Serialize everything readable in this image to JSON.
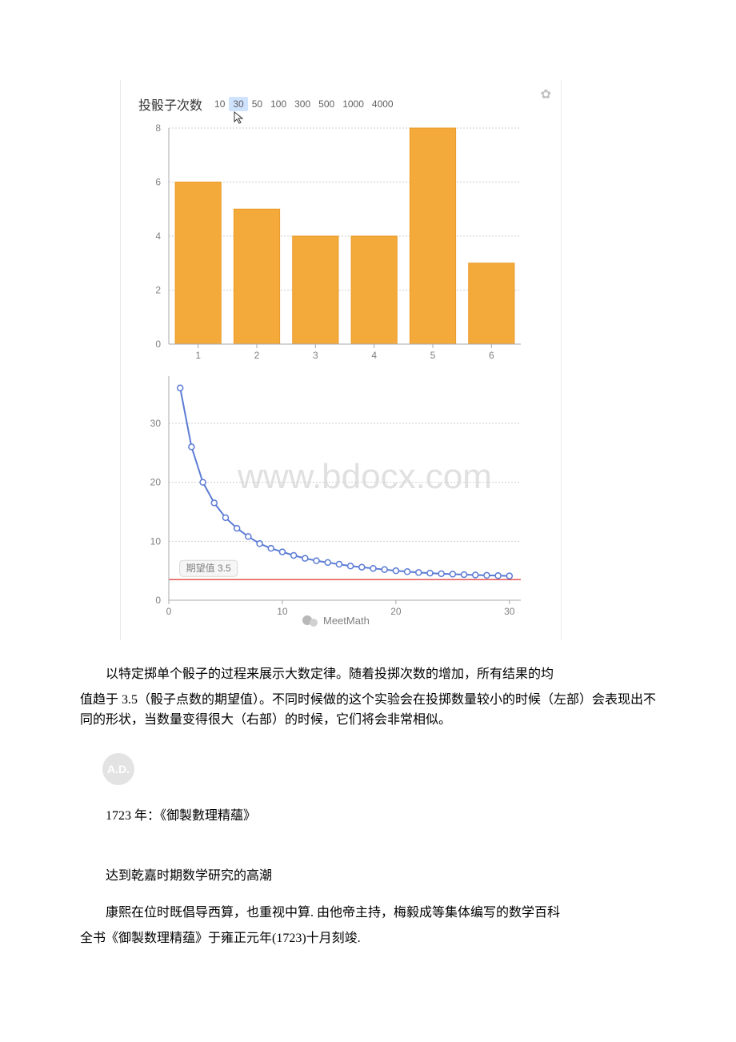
{
  "chart": {
    "header_title": "投骰子次数",
    "trial_options": [
      "10",
      "30",
      "50",
      "100",
      "300",
      "500",
      "1000",
      "4000"
    ],
    "selected_index": 1,
    "gear_glyph": "✿",
    "bar": {
      "type": "bar",
      "categories": [
        "1",
        "2",
        "3",
        "4",
        "5",
        "6"
      ],
      "values": [
        6,
        5,
        4,
        4,
        8,
        3
      ],
      "bar_color": "#f4aa3b",
      "bar_stroke": "#e6952a",
      "grid_color": "#cfcfcf",
      "axis_color": "#a8a8a8",
      "yticks": [
        "0",
        "2",
        "4",
        "6",
        "8"
      ],
      "ylim": [
        0,
        8
      ],
      "xlim": [
        0.5,
        6.5
      ],
      "bar_width": 0.78,
      "label_fontsize": 12
    },
    "line": {
      "type": "line",
      "x": [
        1,
        2,
        3,
        4,
        5,
        6,
        7,
        8,
        9,
        10,
        11,
        12,
        13,
        14,
        15,
        16,
        17,
        18,
        19,
        20,
        21,
        22,
        23,
        24,
        25,
        26,
        27,
        28,
        29,
        30
      ],
      "y": [
        36,
        26,
        20,
        16.5,
        14,
        12.2,
        10.8,
        9.6,
        8.8,
        8.2,
        7.6,
        7.1,
        6.7,
        6.4,
        6.1,
        5.8,
        5.6,
        5.4,
        5.2,
        5.0,
        4.85,
        4.7,
        4.6,
        4.5,
        4.42,
        4.35,
        4.28,
        4.22,
        4.17,
        4.12
      ],
      "line_color": "#5b7bd5",
      "marker_radius": 3.5,
      "grid_color": "#cfcfcf",
      "axis_color": "#a8a8a8",
      "yticks": [
        "0",
        "10",
        "20",
        "30"
      ],
      "ylim": [
        0,
        38
      ],
      "xlim": [
        0,
        31
      ],
      "xticks": [
        "0",
        "10",
        "20",
        "30"
      ],
      "expected_value_label": "期望值 3.5",
      "expected_value_y": 3.5,
      "expected_value_color": "#e55353",
      "watermark_text": "www.bdocx.com",
      "footer_label": "MeetMath"
    }
  },
  "paragraphs": {
    "p1_line1": "以特定掷单个骰子的过程来展示大数定律。随着投掷次数的增加，所有结果的均",
    "p1_rest": "值趋于 3.5（骰子点数的期望值）。不同时候做的这个实验会在投掷数量较小的时候（左部）会表现出不同的形状，当数量变得很大（右部）的时候，它们将会非常相似。",
    "ad_badge": "A.D.",
    "year": "1723 年：《御製數理精蘊》",
    "section": "达到乾嘉时期数学研究的高潮",
    "p2_line1": "康熙在位时既倡导西算，也重视中算. 由他帝主持，梅毅成等集体编写的数学百科",
    "p2_rest": "全书《御製数理精蕴》于雍正元年(1723)十月刻竣."
  }
}
